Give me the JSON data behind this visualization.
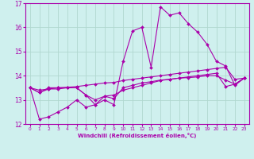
{
  "xlabel": "Windchill (Refroidissement éolien,°C)",
  "bg_color": "#cff0ee",
  "grid_color": "#b0d8d0",
  "line_color": "#aa00aa",
  "xlim": [
    -0.5,
    23.5
  ],
  "ylim": [
    12,
    17
  ],
  "yticks": [
    12,
    13,
    14,
    15,
    16,
    17
  ],
  "xticks": [
    0,
    1,
    2,
    3,
    4,
    5,
    6,
    7,
    8,
    9,
    10,
    11,
    12,
    13,
    14,
    15,
    16,
    17,
    18,
    19,
    20,
    21,
    22,
    23
  ],
  "series": [
    {
      "x": [
        0,
        1,
        2,
        3,
        4,
        5,
        6,
        7,
        8,
        9,
        10,
        11,
        12,
        13,
        14,
        15,
        16,
        17,
        18,
        19,
        20,
        21,
        22,
        23
      ],
      "y": [
        13.5,
        13.3,
        13.5,
        13.5,
        13.5,
        13.5,
        13.2,
        12.8,
        13.0,
        12.8,
        14.6,
        15.85,
        16.0,
        14.35,
        16.85,
        16.5,
        16.6,
        16.15,
        15.8,
        15.3,
        14.6,
        14.4,
        13.6,
        13.9
      ]
    },
    {
      "x": [
        0,
        1,
        2,
        3,
        4,
        5,
        6,
        7,
        8,
        9,
        10,
        11,
        12,
        13,
        14,
        15,
        16,
        17,
        18,
        19,
        20,
        21,
        22,
        23
      ],
      "y": [
        13.5,
        13.4,
        13.45,
        13.5,
        13.52,
        13.55,
        13.6,
        13.65,
        13.7,
        13.72,
        13.8,
        13.85,
        13.9,
        13.95,
        14.0,
        14.05,
        14.1,
        14.15,
        14.2,
        14.25,
        14.3,
        14.35,
        13.85,
        13.9
      ]
    },
    {
      "x": [
        0,
        1,
        2,
        3,
        4,
        5,
        6,
        7,
        8,
        9,
        10,
        11,
        12,
        13,
        14,
        15,
        16,
        17,
        18,
        19,
        20,
        21,
        22,
        23
      ],
      "y": [
        13.5,
        12.2,
        12.3,
        12.5,
        12.7,
        13.0,
        12.7,
        12.8,
        13.15,
        13.2,
        13.4,
        13.5,
        13.6,
        13.7,
        13.8,
        13.85,
        13.9,
        13.95,
        14.0,
        14.05,
        14.1,
        13.55,
        13.65,
        13.9
      ]
    },
    {
      "x": [
        0,
        1,
        2,
        3,
        4,
        5,
        6,
        7,
        8,
        9,
        10,
        11,
        12,
        13,
        14,
        15,
        16,
        17,
        18,
        19,
        20,
        21,
        22,
        23
      ],
      "y": [
        13.5,
        13.3,
        13.45,
        13.45,
        13.5,
        13.5,
        13.2,
        13.0,
        13.15,
        13.05,
        13.5,
        13.6,
        13.7,
        13.75,
        13.82,
        13.85,
        13.9,
        13.92,
        13.95,
        14.0,
        14.0,
        13.82,
        13.65,
        13.9
      ]
    }
  ]
}
